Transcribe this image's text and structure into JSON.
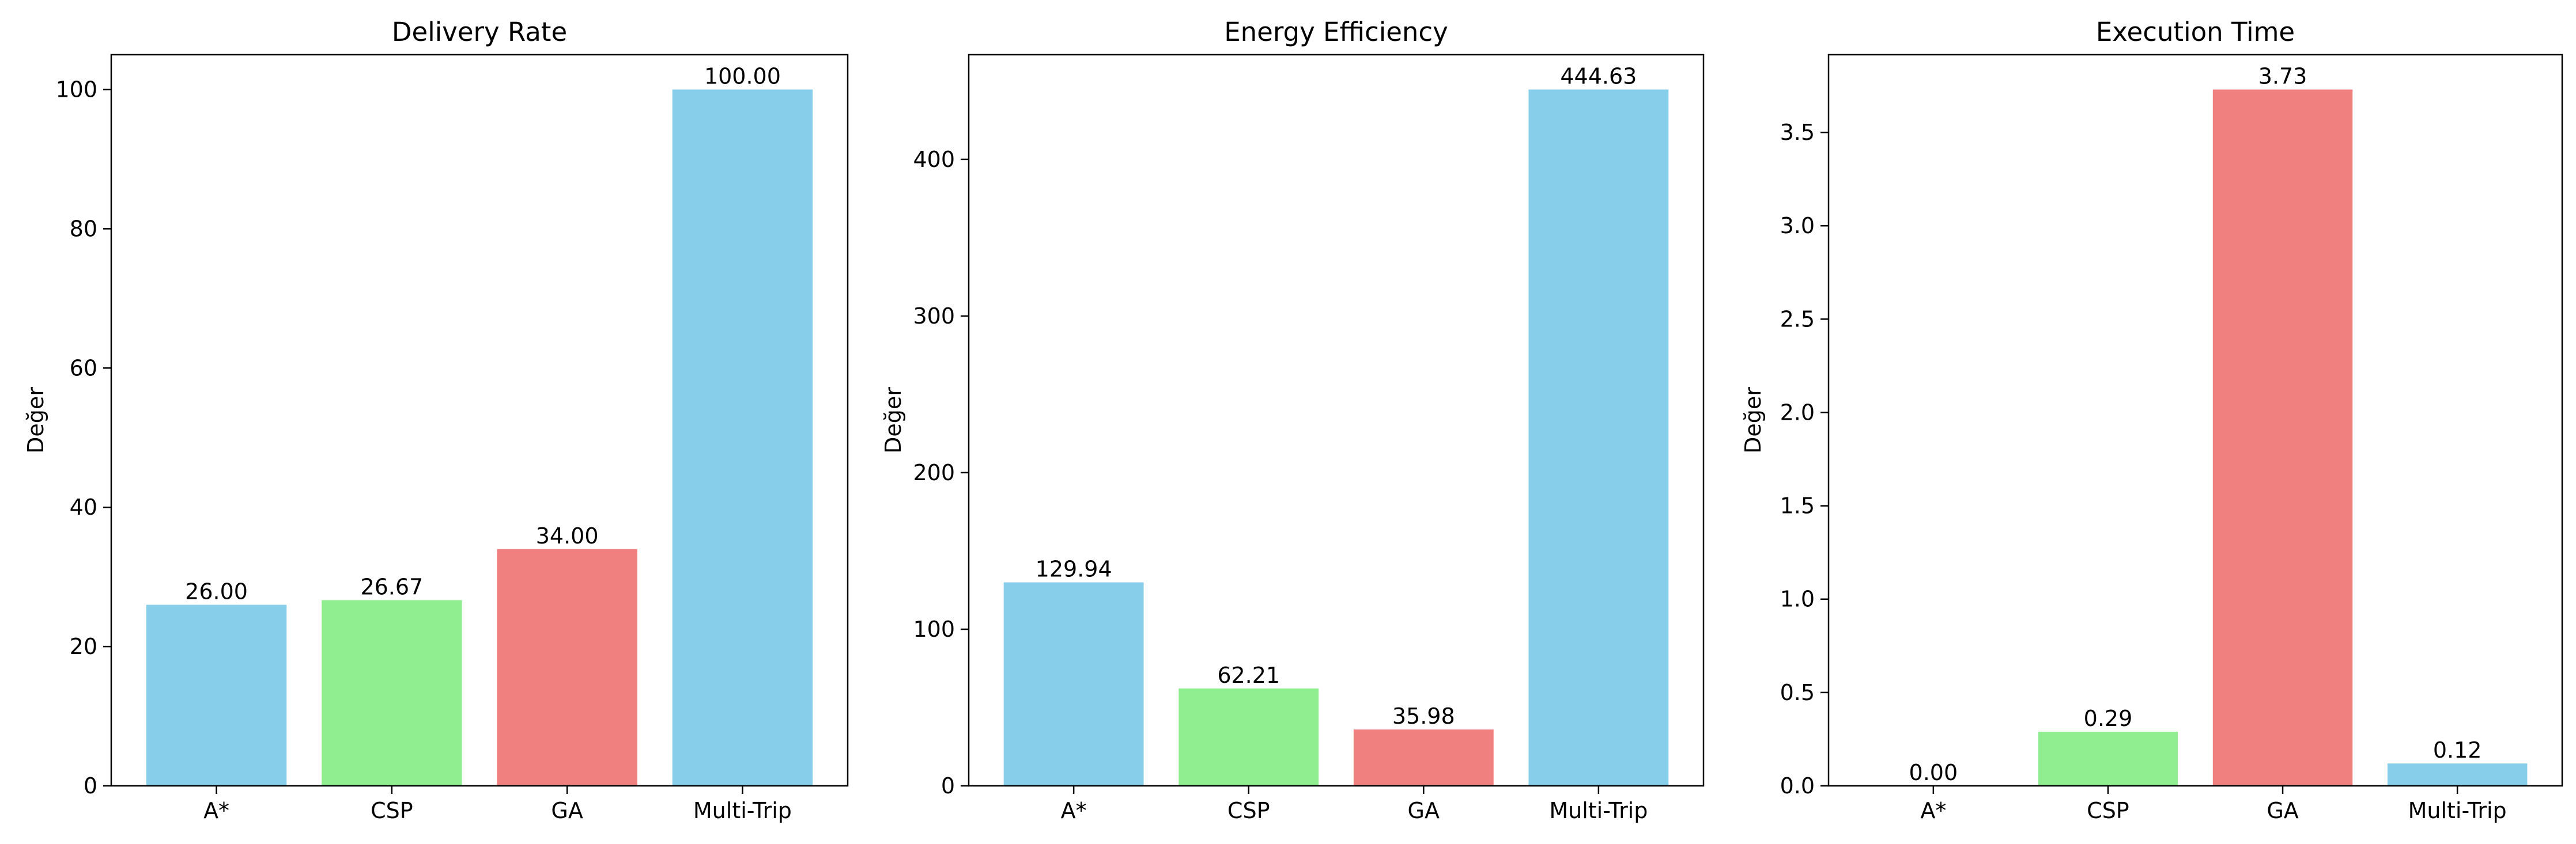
{
  "chart_data": [
    {
      "type": "bar",
      "title": "Delivery Rate",
      "xlabel": "",
      "ylabel": "Değer",
      "categories": [
        "A*",
        "CSP",
        "GA",
        "Multi-Trip"
      ],
      "values": [
        26.0,
        26.67,
        34.0,
        100.0
      ],
      "value_labels": [
        "26.00",
        "26.67",
        "34.00",
        "100.00"
      ],
      "colors": [
        "#87CEEB",
        "#90EE90",
        "#F08080",
        "#87CEEB"
      ],
      "ylim": [
        0,
        105
      ],
      "yticks": [
        0,
        20,
        40,
        60,
        80,
        100
      ],
      "ytick_labels": [
        "0",
        "20",
        "40",
        "60",
        "80",
        "100"
      ],
      "grid": false,
      "legend": "none"
    },
    {
      "type": "bar",
      "title": "Energy Efficiency",
      "xlabel": "",
      "ylabel": "Değer",
      "categories": [
        "A*",
        "CSP",
        "GA",
        "Multi-Trip"
      ],
      "values": [
        129.94,
        62.21,
        35.98,
        444.63
      ],
      "value_labels": [
        "129.94",
        "62.21",
        "35.98",
        "444.63"
      ],
      "colors": [
        "#87CEEB",
        "#90EE90",
        "#F08080",
        "#87CEEB"
      ],
      "ylim": [
        0,
        466.86
      ],
      "yticks": [
        0,
        100,
        200,
        300,
        400
      ],
      "ytick_labels": [
        "0",
        "100",
        "200",
        "300",
        "400"
      ],
      "grid": false,
      "legend": "none"
    },
    {
      "type": "bar",
      "title": "Execution Time",
      "xlabel": "",
      "ylabel": "Değer",
      "categories": [
        "A*",
        "CSP",
        "GA",
        "Multi-Trip"
      ],
      "values": [
        0.0,
        0.29,
        3.73,
        0.12
      ],
      "value_labels": [
        "0.00",
        "0.29",
        "3.73",
        "0.12"
      ],
      "colors": [
        "#87CEEB",
        "#90EE90",
        "#F08080",
        "#87CEEB"
      ],
      "ylim": [
        0,
        3.9165
      ],
      "yticks": [
        0.0,
        0.5,
        1.0,
        1.5,
        2.0,
        2.5,
        3.0,
        3.5
      ],
      "ytick_labels": [
        "0.0",
        "0.5",
        "1.0",
        "1.5",
        "2.0",
        "2.5",
        "3.0",
        "3.5"
      ],
      "grid": false,
      "legend": "none"
    }
  ]
}
